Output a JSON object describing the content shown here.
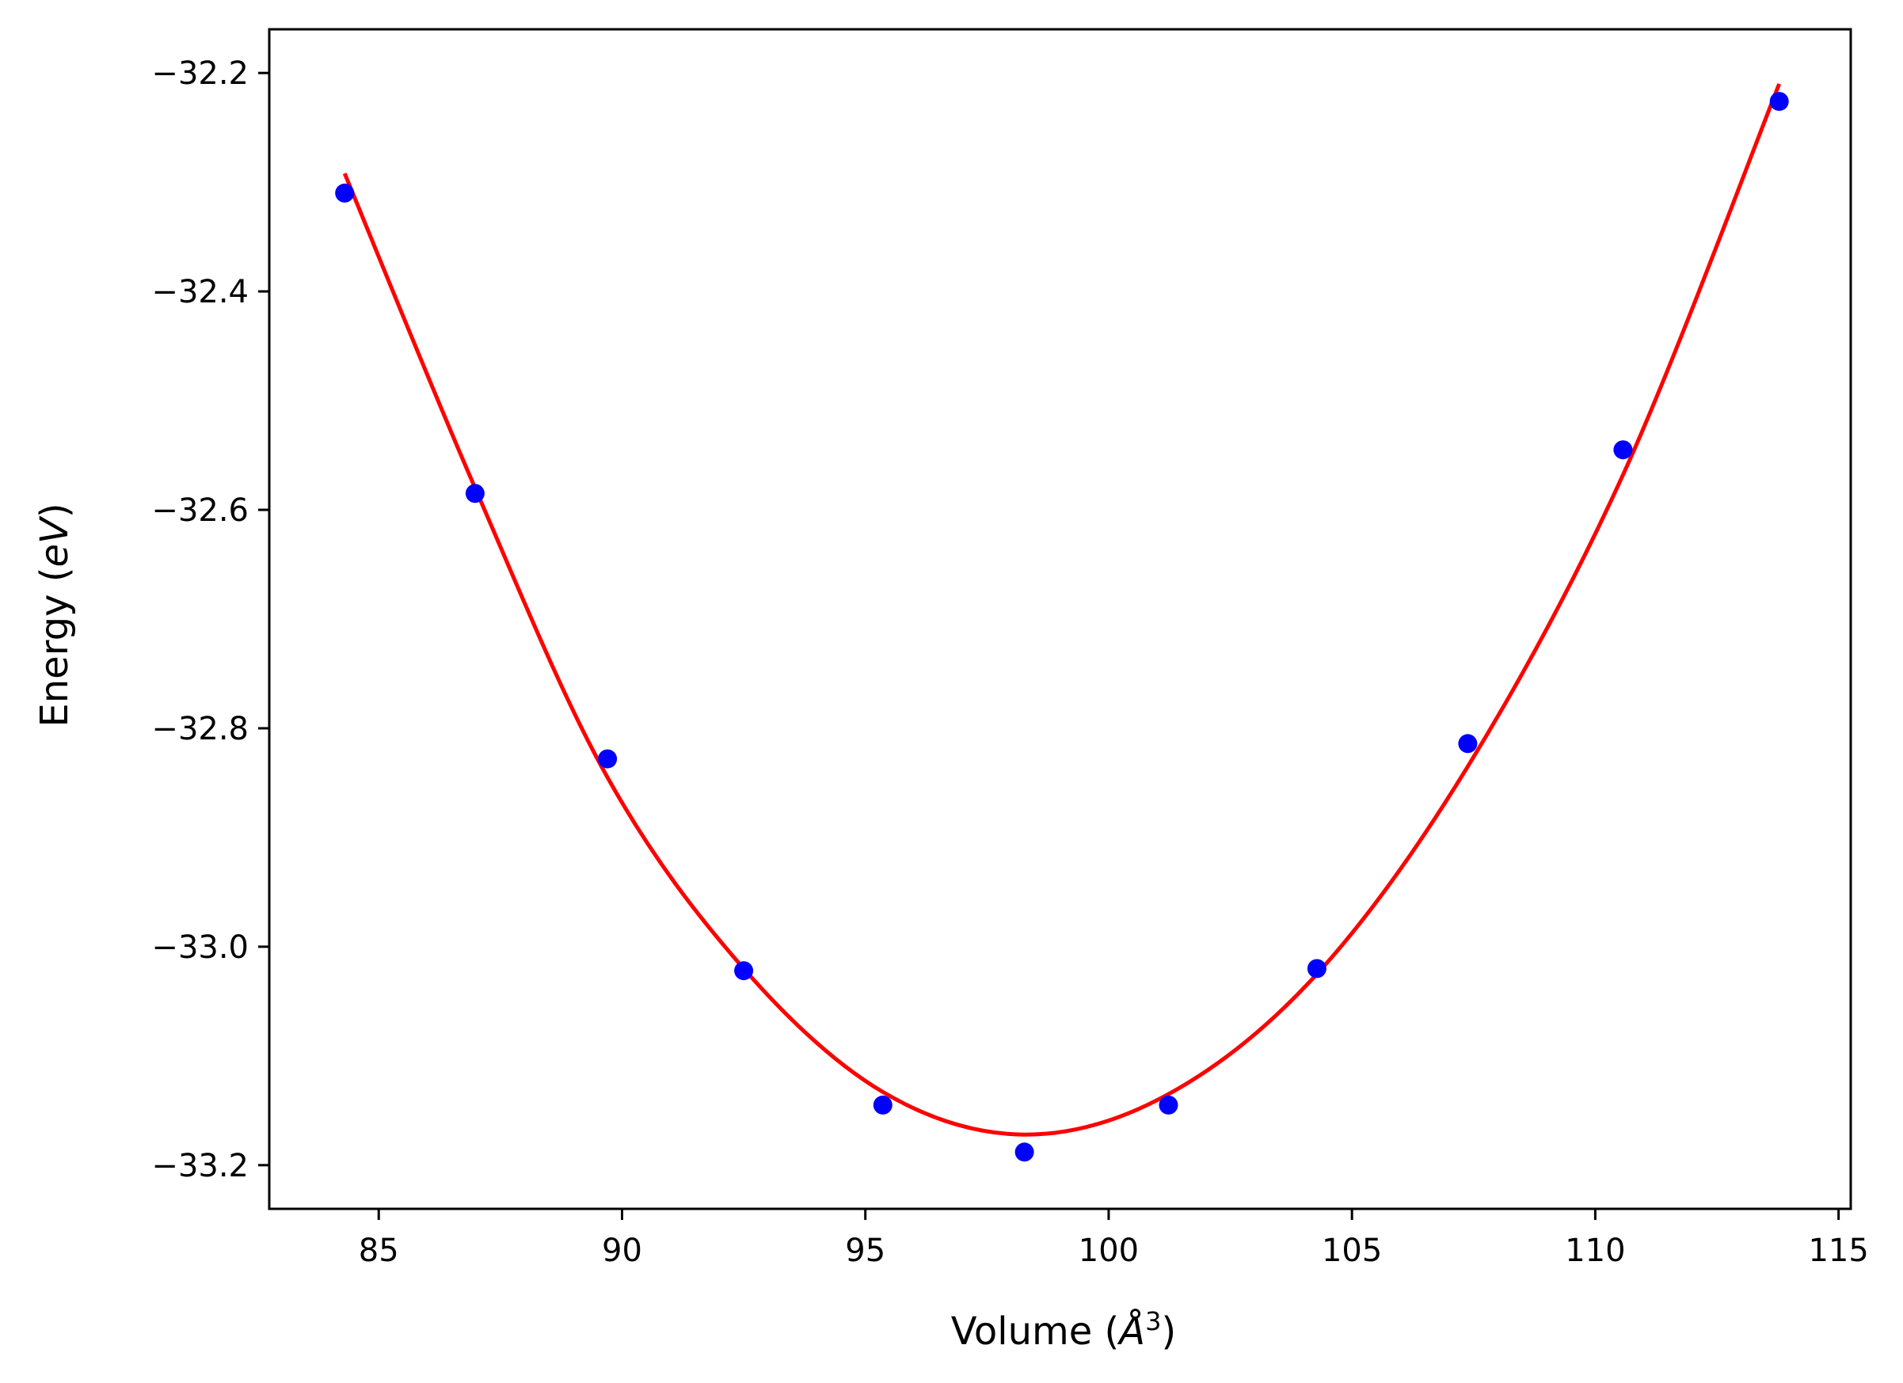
{
  "chart_data": {
    "type": "scatter",
    "title": "",
    "xlabel": "Volume",
    "xlabel_unit_base": "Å",
    "xlabel_unit_exp": "3",
    "ylabel": "Energy",
    "ylabel_unit": "eV",
    "xlim": [
      82.75,
      115.25
    ],
    "ylim": [
      -33.24,
      -32.16
    ],
    "xticks": [
      85,
      90,
      95,
      100,
      105,
      110,
      115
    ],
    "xtick_labels": [
      "85",
      "90",
      "95",
      "100",
      "105",
      "110",
      "115"
    ],
    "yticks": [
      -32.2,
      -32.4,
      -32.6,
      -32.8,
      -33.0,
      -33.2
    ],
    "ytick_labels": [
      "−32.2",
      "−32.4",
      "−32.6",
      "−32.8",
      "−33.0",
      "−33.2"
    ],
    "grid": false,
    "series": [
      {
        "kind": "points",
        "color": "#0000ff",
        "x": [
          84.3,
          86.98,
          89.7,
          92.5,
          95.36,
          98.27,
          101.23,
          104.28,
          107.38,
          110.57,
          113.78
        ],
        "y": [
          -32.31,
          -32.585,
          -32.828,
          -33.022,
          -33.145,
          -33.188,
          -33.145,
          -33.02,
          -32.814,
          -32.545,
          -32.226
        ]
      },
      {
        "kind": "fit-curve",
        "color": "#ff0000",
        "x": [
          84.3,
          86.98,
          89.7,
          92.5,
          95.36,
          98.27,
          101.23,
          104.28,
          107.38,
          110.57,
          113.78
        ],
        "y": [
          -32.292,
          -32.58,
          -32.845,
          -33.02,
          -33.133,
          -33.172,
          -33.135,
          -33.025,
          -32.835,
          -32.568,
          -32.21
        ]
      }
    ]
  },
  "colors": {
    "points": "#0000ff",
    "fit_line": "#ff0000",
    "axes": "#000000",
    "background": "#ffffff"
  }
}
